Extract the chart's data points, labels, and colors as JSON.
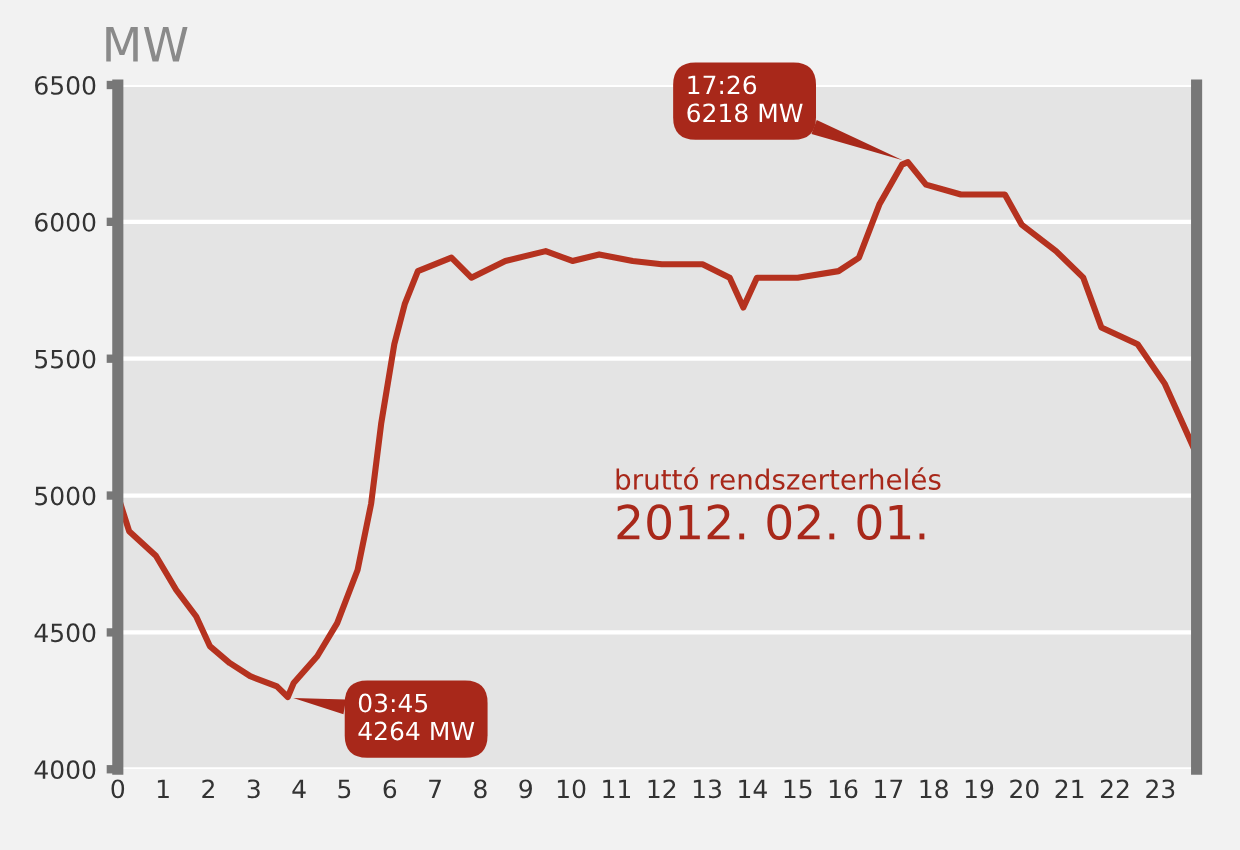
{
  "chart_data": {
    "type": "line",
    "ylabel": "MW",
    "x": [
      0,
      0.25,
      0.84,
      1.29,
      1.73,
      2.03,
      2.47,
      2.92,
      3.51,
      3.75,
      3.88,
      4.4,
      4.84,
      5.29,
      5.59,
      5.81,
      6.1,
      6.33,
      6.62,
      7.36,
      7.8,
      8.55,
      9.44,
      10.03,
      10.62,
      11.36,
      12,
      12.9,
      13.5,
      13.8,
      14.1,
      15,
      15.9,
      16.35,
      16.8,
      17.3,
      17.43,
      17.83,
      18.6,
      19.57,
      19.94,
      20.7,
      21.3,
      21.7,
      22.5,
      23.1,
      23.76
    ],
    "series": [
      {
        "color": "#b5321f",
        "values": [
          5000,
          4870,
          4780,
          4655,
          4558,
          4450,
          4388,
          4340,
          4303,
          4264,
          4315,
          4413,
          4534,
          4728,
          4971,
          5262,
          5553,
          5699,
          5820,
          5869,
          5796,
          5857,
          5893,
          5857,
          5881,
          5857,
          5845,
          5845,
          5796,
          5687,
          5796,
          5796,
          5820,
          5869,
          6063,
          6209,
          6218,
          6136,
          6100,
          6100,
          5990,
          5893,
          5796,
          5614,
          5553,
          5408,
          5165
        ]
      }
    ],
    "xlim": [
      0,
      23.8
    ],
    "xticks": [
      0,
      1,
      2,
      3,
      4,
      5,
      6,
      7,
      8,
      9,
      10,
      11,
      12,
      13,
      14,
      15,
      16,
      17,
      18,
      19,
      20,
      21,
      22,
      23
    ],
    "ylim": [
      4000,
      6500
    ],
    "yticks": [
      4000,
      4500,
      5000,
      5500,
      6000,
      6500
    ],
    "grid": "y",
    "marker": "none",
    "line_style": "solid",
    "annotations": [
      {
        "text": "03:45\n4264 MW",
        "x": 3.75,
        "y": 4264
      },
      {
        "text": "17:26\n6218 MW",
        "x": 17.43,
        "y": 6218
      },
      "bruttó rendszerterhelés",
      "2012. 02. 01."
    ]
  }
}
